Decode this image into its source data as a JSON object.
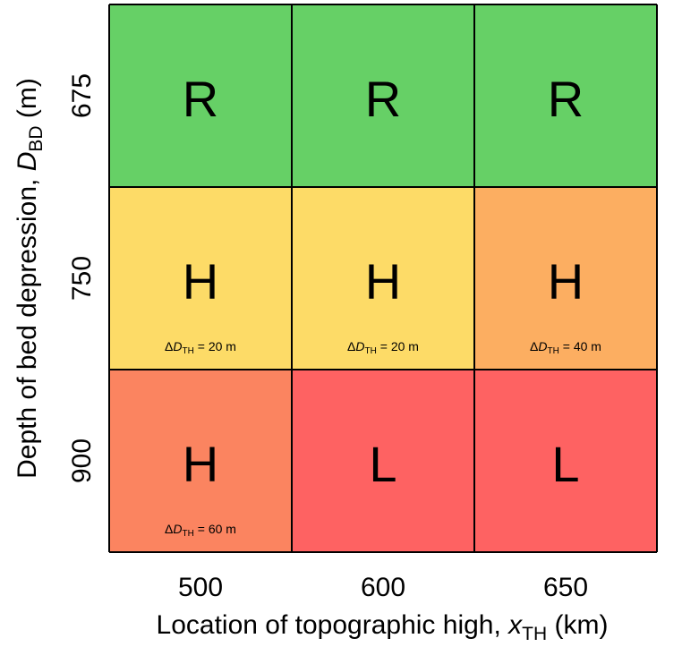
{
  "chart_data": {
    "type": "heatmap",
    "xlabel": {
      "prefix": "Location of topographic high, ",
      "var": "x",
      "sub": "TH",
      "suffix": " (km)"
    },
    "ylabel": {
      "prefix": "Depth of bed depression, ",
      "var": "D",
      "sub": "BD",
      "suffix": " (m)"
    },
    "x_categories": [
      "500",
      "600",
      "650"
    ],
    "y_categories": [
      "675",
      "750",
      "900"
    ],
    "cells": [
      [
        {
          "value": "R",
          "color": "#66d066",
          "annotation": null
        },
        {
          "value": "R",
          "color": "#66d066",
          "annotation": null
        },
        {
          "value": "R",
          "color": "#66d066",
          "annotation": null
        }
      ],
      [
        {
          "value": "H",
          "color": "#fddb67",
          "annotation": {
            "delta": "Δ",
            "var": "D",
            "sub": "TH",
            "text": " = 20 m"
          }
        },
        {
          "value": "H",
          "color": "#fddb67",
          "annotation": {
            "delta": "Δ",
            "var": "D",
            "sub": "TH",
            "text": " = 20 m"
          }
        },
        {
          "value": "H",
          "color": "#fcae61",
          "annotation": {
            "delta": "Δ",
            "var": "D",
            "sub": "TH",
            "text": " = 40 m"
          }
        }
      ],
      [
        {
          "value": "H",
          "color": "#fb8460",
          "annotation": {
            "delta": "Δ",
            "var": "D",
            "sub": "TH",
            "text": " = 60 m"
          }
        },
        {
          "value": "L",
          "color": "#fe6262",
          "annotation": null
        },
        {
          "value": "L",
          "color": "#fe6262",
          "annotation": null
        }
      ]
    ],
    "grid": true,
    "legend": "none"
  }
}
